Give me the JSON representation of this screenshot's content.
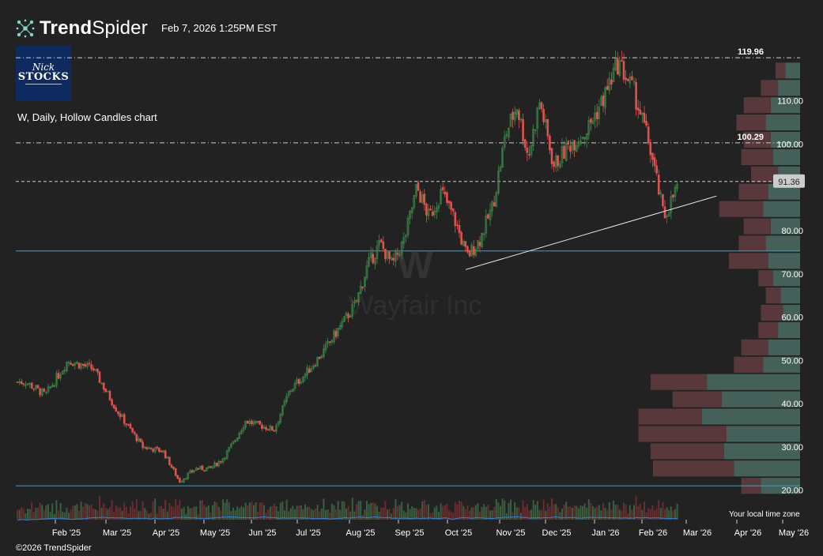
{
  "header": {
    "brand_bold": "Trend",
    "brand_light": "Spider",
    "timestamp": "Feb 7, 2026 1:25PM EST"
  },
  "logo": {
    "line1": "Nick",
    "line2": "STOCKS"
  },
  "chart_title": "W, Daily, Hollow Candles chart",
  "watermark": {
    "ticker": "W",
    "name": "Wayfair Inc"
  },
  "footer": {
    "copyright": "©2026 TrendSpider",
    "timezone": "Your local time zone"
  },
  "colors": {
    "background": "#222222",
    "up": "#3f8a4a",
    "down": "#e0524f",
    "hline": "#2aa8d8",
    "trendline": "#e8e8e8",
    "volume_ma": "#3a7fd0"
  },
  "chart_data": {
    "type": "candlestick",
    "ylim": [
      15,
      122
    ],
    "y_ticks": [
      "110.00",
      "100.00",
      "80.00",
      "70.00",
      "60.00",
      "50.00",
      "40.00",
      "30.00",
      "20.00"
    ],
    "x_ticks": [
      "Feb '25",
      "Mar '25",
      "Apr '25",
      "May '25",
      "Jun '25",
      "Jul '25",
      "Aug '25",
      "Sep '25",
      "Oct '25",
      "Nov '25",
      "Dec '25",
      "Jan '26",
      "Feb '26",
      "Mar '26",
      "Apr '26",
      "May '26"
    ],
    "price_labels": {
      "high": "119.96",
      "mid": "100.29",
      "last": "91.36"
    },
    "horizontal_levels": [
      {
        "value": 119.96,
        "style": "dash-dot",
        "label": "119.96"
      },
      {
        "value": 100.29,
        "style": "dash-dot",
        "label": "100.29"
      },
      {
        "value": 91.36,
        "style": "dashed",
        "label": "91.36"
      },
      {
        "value": 75.3,
        "style": "solid-blue"
      },
      {
        "value": 21.0,
        "style": "solid-blue"
      }
    ],
    "trendline": {
      "from": [
        "Oct '25",
        71
      ],
      "to": [
        "Mar '26",
        88
      ]
    },
    "price_path": [
      [
        "Jan '25",
        45
      ],
      [
        "Jan '25",
        42
      ],
      [
        "Feb '25",
        50
      ],
      [
        "Feb '25",
        48
      ],
      [
        "Mar '25",
        38
      ],
      [
        "Mar '25",
        30
      ],
      [
        "Apr '25",
        29
      ],
      [
        "Apr '25",
        22
      ],
      [
        "Apr '25",
        25
      ],
      [
        "May '25",
        25
      ],
      [
        "May '25",
        27
      ],
      [
        "May '25",
        31
      ],
      [
        "May '25",
        36
      ],
      [
        "Jun '25",
        35
      ],
      [
        "Jun '25",
        34
      ],
      [
        "Jun '25",
        43
      ],
      [
        "Jul '25",
        47
      ],
      [
        "Jul '25",
        52
      ],
      [
        "Jul '25",
        58
      ],
      [
        "Aug '25",
        63
      ],
      [
        "Aug '25",
        72
      ],
      [
        "Aug '25",
        77
      ],
      [
        "Aug '25",
        72
      ],
      [
        "Sep '25",
        78
      ],
      [
        "Sep '25",
        90
      ],
      [
        "Sep '25",
        83
      ],
      [
        "Sep '25",
        89
      ],
      [
        "Oct '25",
        83
      ],
      [
        "Oct '25",
        74
      ],
      [
        "Oct '25",
        78
      ],
      [
        "Oct '25",
        86
      ],
      [
        "Nov '25",
        102
      ],
      [
        "Nov '25",
        109
      ],
      [
        "Nov '25",
        97
      ],
      [
        "Nov '25",
        110
      ],
      [
        "Dec '25",
        95
      ],
      [
        "Dec '25",
        100
      ],
      [
        "Dec '25",
        103
      ],
      [
        "Jan '26",
        110
      ],
      [
        "Jan '26",
        119
      ],
      [
        "Jan '26",
        112
      ],
      [
        "Feb '26",
        100
      ],
      [
        "Feb '26",
        83
      ],
      [
        "Feb '26",
        91
      ]
    ],
    "volume_profile": [
      {
        "price": 117,
        "up": 30,
        "down": 20
      },
      {
        "price": 113,
        "up": 45,
        "down": 35
      },
      {
        "price": 109,
        "up": 60,
        "down": 55
      },
      {
        "price": 105,
        "up": 70,
        "down": 60
      },
      {
        "price": 101,
        "up": 60,
        "down": 55
      },
      {
        "price": 97,
        "up": 55,
        "down": 65
      },
      {
        "price": 93,
        "up": 45,
        "down": 55
      },
      {
        "price": 89,
        "up": 65,
        "down": 60
      },
      {
        "price": 85,
        "up": 75,
        "down": 90
      },
      {
        "price": 81,
        "up": 60,
        "down": 55
      },
      {
        "price": 77,
        "up": 70,
        "down": 55
      },
      {
        "price": 73,
        "up": 65,
        "down": 80
      },
      {
        "price": 69,
        "up": 55,
        "down": 30
      },
      {
        "price": 65,
        "up": 40,
        "down": 30
      },
      {
        "price": 61,
        "up": 35,
        "down": 45
      },
      {
        "price": 57,
        "up": 45,
        "down": 40
      },
      {
        "price": 53,
        "up": 65,
        "down": 55
      },
      {
        "price": 49,
        "up": 75,
        "down": 60
      },
      {
        "price": 45,
        "up": 190,
        "down": 115
      },
      {
        "price": 41,
        "up": 160,
        "down": 100
      },
      {
        "price": 37,
        "up": 200,
        "down": 130
      },
      {
        "price": 33,
        "up": 150,
        "down": 180
      },
      {
        "price": 29,
        "up": 155,
        "down": 150
      },
      {
        "price": 25,
        "up": 135,
        "down": 165
      },
      {
        "price": 21,
        "up": 80,
        "down": 40
      }
    ]
  }
}
